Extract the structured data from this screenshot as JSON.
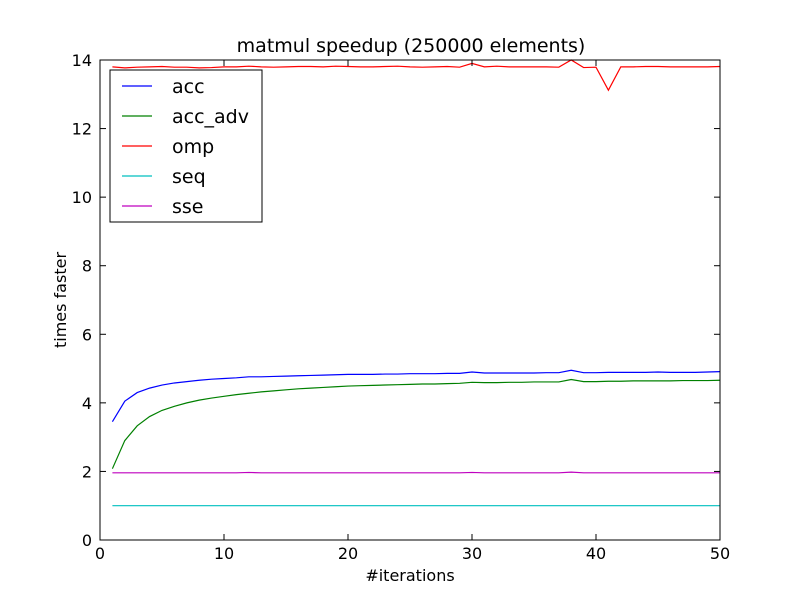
{
  "chart_data": {
    "type": "line",
    "title": "matmul speedup (250000 elements)",
    "xlabel": "#iterations",
    "ylabel": "times faster",
    "xlim": [
      0,
      50
    ],
    "ylim": [
      0,
      14
    ],
    "xticks": [
      0,
      10,
      20,
      30,
      40,
      50
    ],
    "yticks": [
      0,
      2,
      4,
      6,
      8,
      10,
      12,
      14
    ],
    "grid": false,
    "legend_position": "top-left",
    "x": [
      1,
      2,
      3,
      4,
      5,
      6,
      7,
      8,
      9,
      10,
      11,
      12,
      13,
      14,
      15,
      16,
      17,
      18,
      19,
      20,
      21,
      22,
      23,
      24,
      25,
      26,
      27,
      28,
      29,
      30,
      31,
      32,
      33,
      34,
      35,
      36,
      37,
      38,
      39,
      40,
      41,
      42,
      43,
      44,
      45,
      46,
      47,
      48,
      49,
      50
    ],
    "series": [
      {
        "name": "acc",
        "color": "#0000ff",
        "values": [
          3.45,
          4.05,
          4.3,
          4.43,
          4.52,
          4.58,
          4.62,
          4.66,
          4.69,
          4.71,
          4.73,
          4.76,
          4.76,
          4.77,
          4.78,
          4.79,
          4.8,
          4.81,
          4.82,
          4.83,
          4.83,
          4.83,
          4.84,
          4.84,
          4.85,
          4.85,
          4.85,
          4.86,
          4.86,
          4.9,
          4.87,
          4.87,
          4.87,
          4.87,
          4.87,
          4.88,
          4.88,
          4.95,
          4.88,
          4.88,
          4.89,
          4.89,
          4.89,
          4.89,
          4.9,
          4.89,
          4.89,
          4.89,
          4.9,
          4.91
        ]
      },
      {
        "name": "acc_adv",
        "color": "#008000",
        "values": [
          2.08,
          2.9,
          3.33,
          3.6,
          3.78,
          3.9,
          4.0,
          4.08,
          4.14,
          4.19,
          4.24,
          4.28,
          4.32,
          4.35,
          4.38,
          4.41,
          4.43,
          4.45,
          4.47,
          4.49,
          4.5,
          4.51,
          4.52,
          4.53,
          4.54,
          4.55,
          4.55,
          4.56,
          4.57,
          4.6,
          4.59,
          4.59,
          4.6,
          4.6,
          4.61,
          4.61,
          4.61,
          4.68,
          4.62,
          4.62,
          4.63,
          4.63,
          4.64,
          4.64,
          4.64,
          4.64,
          4.65,
          4.65,
          4.65,
          4.66
        ]
      },
      {
        "name": "omp",
        "color": "#ff0000",
        "values": [
          13.8,
          13.77,
          13.79,
          13.8,
          13.81,
          13.79,
          13.79,
          13.77,
          13.78,
          13.8,
          13.8,
          13.82,
          13.8,
          13.79,
          13.8,
          13.81,
          13.81,
          13.8,
          13.82,
          13.81,
          13.8,
          13.8,
          13.81,
          13.82,
          13.8,
          13.79,
          13.8,
          13.81,
          13.79,
          13.9,
          13.8,
          13.82,
          13.8,
          13.8,
          13.8,
          13.8,
          13.79,
          14.0,
          13.78,
          13.79,
          13.12,
          13.8,
          13.8,
          13.81,
          13.81,
          13.8,
          13.8,
          13.8,
          13.8,
          13.81
        ]
      },
      {
        "name": "seq",
        "color": "#00bfbf",
        "values": [
          1,
          1,
          1,
          1,
          1,
          1,
          1,
          1,
          1,
          1,
          1,
          1,
          1,
          1,
          1,
          1,
          1,
          1,
          1,
          1,
          1,
          1,
          1,
          1,
          1,
          1,
          1,
          1,
          1,
          1,
          1,
          1,
          1,
          1,
          1,
          1,
          1,
          1,
          1,
          1,
          1,
          1,
          1,
          1,
          1,
          1,
          1,
          1,
          1,
          1
        ]
      },
      {
        "name": "sse",
        "color": "#bf00bf",
        "values": [
          1.96,
          1.96,
          1.96,
          1.96,
          1.96,
          1.96,
          1.96,
          1.96,
          1.96,
          1.96,
          1.96,
          1.97,
          1.96,
          1.96,
          1.96,
          1.96,
          1.96,
          1.96,
          1.96,
          1.96,
          1.96,
          1.96,
          1.96,
          1.96,
          1.96,
          1.96,
          1.96,
          1.96,
          1.96,
          1.97,
          1.96,
          1.96,
          1.96,
          1.96,
          1.96,
          1.96,
          1.96,
          1.98,
          1.96,
          1.96,
          1.96,
          1.96,
          1.96,
          1.96,
          1.96,
          1.96,
          1.96,
          1.96,
          1.96,
          1.96
        ]
      }
    ]
  }
}
